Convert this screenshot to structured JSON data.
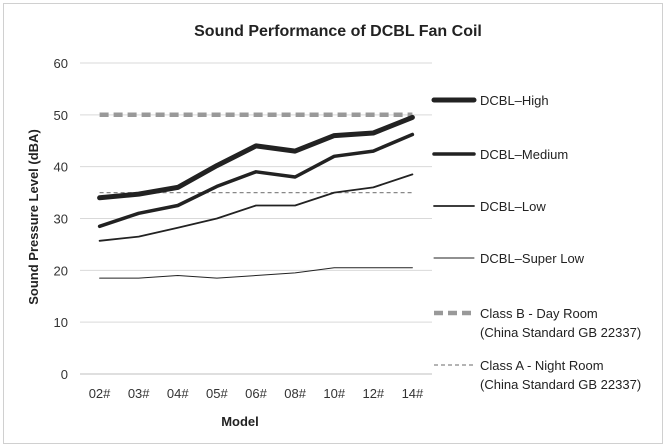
{
  "chart_data": {
    "type": "line",
    "title": "Sound Performance of DCBL Fan Coil",
    "xlabel": "Model",
    "ylabel": "Sound Pressure Level (dBA)",
    "categories": [
      "02#",
      "03#",
      "04#",
      "05#",
      "06#",
      "08#",
      "10#",
      "12#",
      "14#"
    ],
    "ylim": [
      0,
      60
    ],
    "yticks": [
      0,
      10,
      20,
      30,
      40,
      50,
      60
    ],
    "grid": true,
    "legend_position": "right",
    "series": [
      {
        "name": "DCBL–High",
        "values": [
          34,
          34.7,
          36,
          40.2,
          44,
          43,
          46,
          46.5,
          49.5
        ],
        "color": "#222222",
        "style": "thick"
      },
      {
        "name": "DCBL–Medium",
        "values": [
          28.5,
          31,
          32.5,
          36.2,
          39,
          38,
          42,
          43,
          46.2
        ],
        "color": "#222222",
        "style": "medium"
      },
      {
        "name": "DCBL–Low",
        "values": [
          25.7,
          26.5,
          28.2,
          30,
          32.5,
          32.5,
          35,
          36,
          38.5
        ],
        "color": "#222222",
        "style": "thin"
      },
      {
        "name": "DCBL–Super Low",
        "values": [
          18.5,
          18.5,
          19,
          18.5,
          19,
          19.5,
          20.5,
          20.5,
          20.5
        ],
        "color": "#222222",
        "style": "hairline"
      },
      {
        "name": "Class B - Day Room",
        "name_line2": "(China Standard GB 22337)",
        "values": [
          50,
          50,
          50,
          50,
          50,
          50,
          50,
          50,
          50
        ],
        "color": "#999999",
        "style": "dashed-thick"
      },
      {
        "name": "Class A - Night Room",
        "name_line2": "(China Standard GB 22337)",
        "values": [
          35,
          35,
          35,
          35,
          35,
          35,
          35,
          35,
          35
        ],
        "color": "#888888",
        "style": "dashed-thin"
      }
    ]
  }
}
